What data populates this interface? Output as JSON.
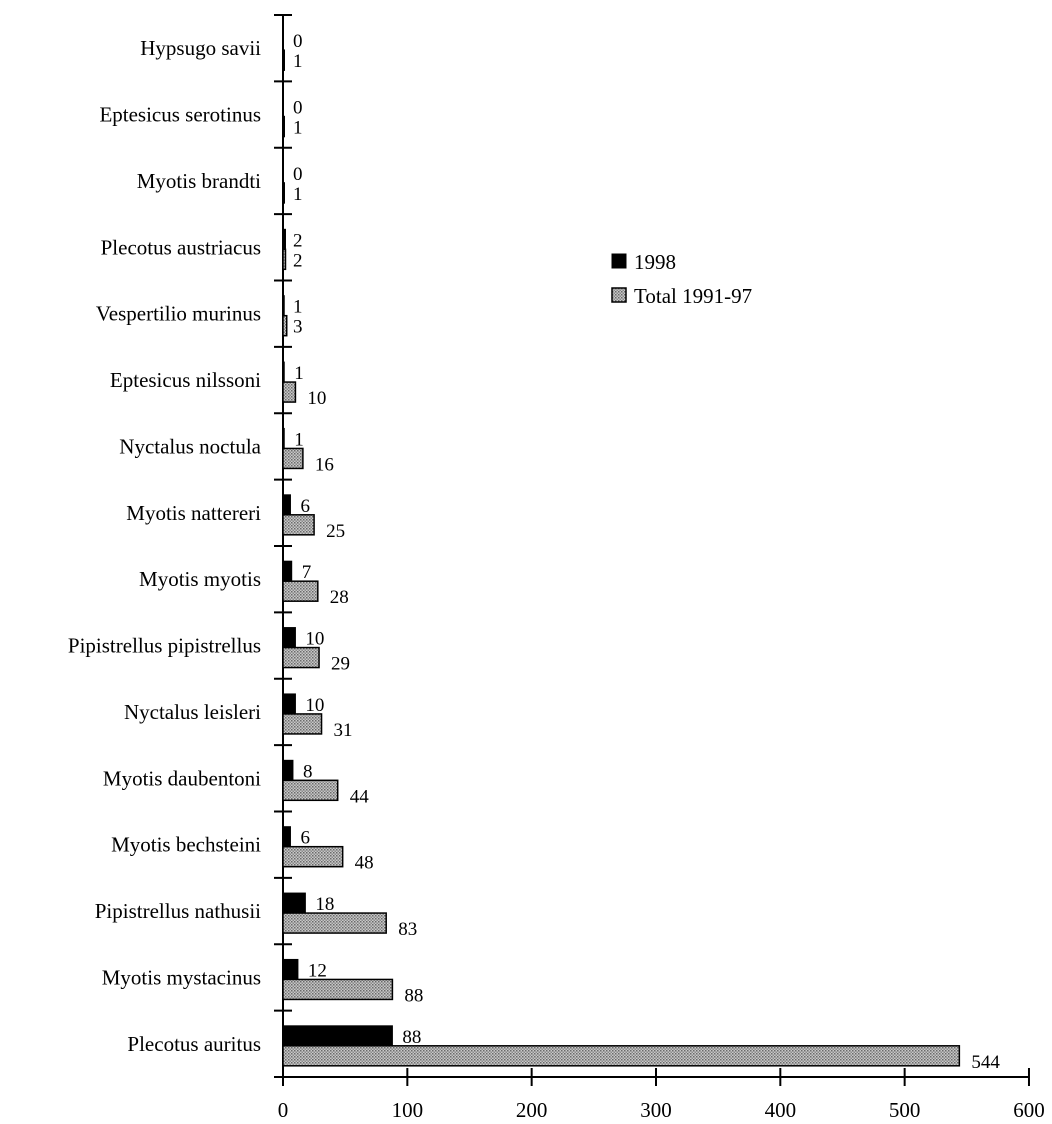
{
  "chart_data": {
    "type": "bar",
    "orientation": "horizontal",
    "title": "",
    "xlabel": "",
    "ylabel": "",
    "categories": [
      "Hypsugo savii",
      "Eptesicus serotinus",
      "Myotis brandti",
      "Plecotus austriacus",
      "Vespertilio murinus",
      "Eptesicus nilssoni",
      "Nyctalus noctula",
      "Myotis nattereri",
      "Myotis myotis",
      "Pipistrellus pipistrellus",
      "Nyctalus leisleri",
      "Myotis daubentoni",
      "Myotis bechsteini",
      "Pipistrellus nathusii",
      "Myotis mystacinus",
      "Plecotus auritus"
    ],
    "series": [
      {
        "name": "1998",
        "color": "#000000",
        "values": [
          0,
          0,
          0,
          2,
          1,
          1,
          1,
          6,
          7,
          10,
          10,
          8,
          6,
          18,
          12,
          88
        ]
      },
      {
        "name": "Total 1991-97",
        "color": "#9a9a9a",
        "pattern": "dotted-grey",
        "values": [
          1,
          1,
          1,
          2,
          3,
          10,
          16,
          25,
          28,
          29,
          31,
          44,
          48,
          83,
          88,
          544
        ]
      }
    ],
    "xlim": [
      0,
      600
    ],
    "xticks": [
      "0",
      "100",
      "200",
      "300",
      "400",
      "500",
      "600"
    ],
    "grid": false,
    "legend_position": "right"
  }
}
